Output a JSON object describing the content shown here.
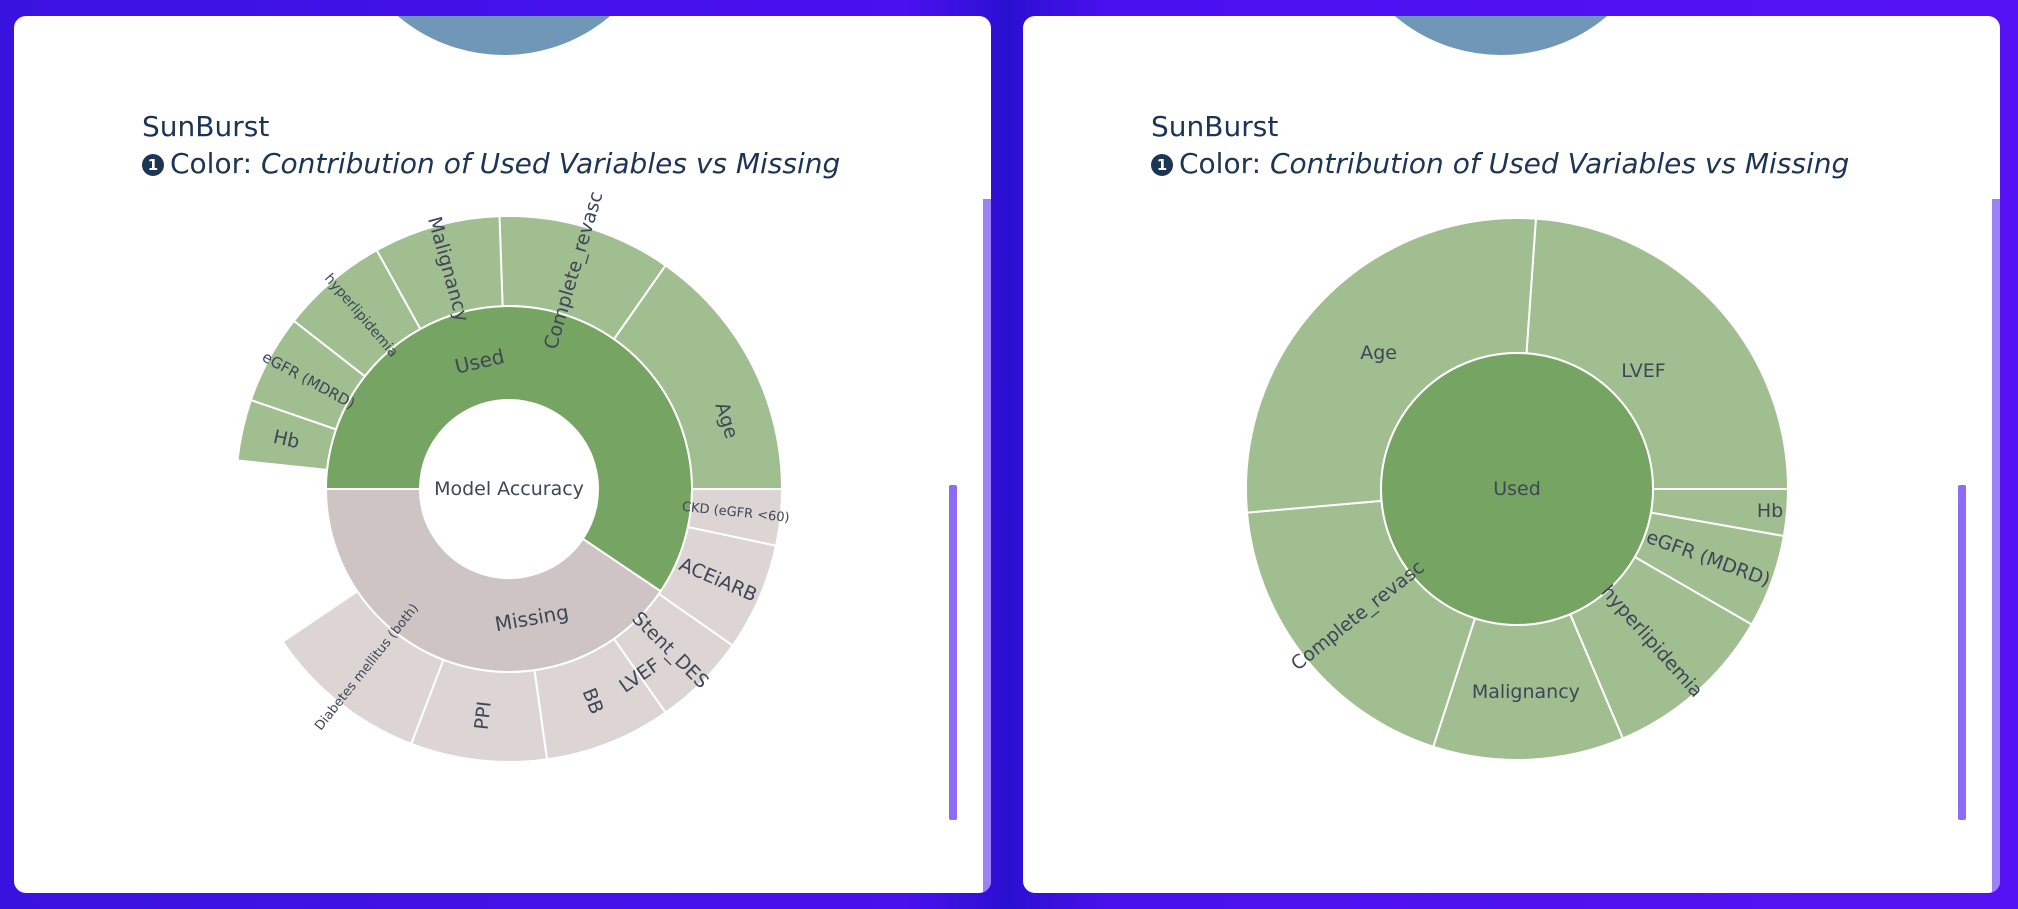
{
  "panels": [
    {
      "id": "left",
      "title": "SunBurst",
      "subtitle_number": "❶",
      "subtitle_prefix": "Color:",
      "subtitle_metric": "Contribution of Used Variables vs Missing",
      "center_label": "Model Accuracy"
    },
    {
      "id": "right",
      "title": "SunBurst",
      "subtitle_number": "❶",
      "subtitle_prefix": "Color:",
      "subtitle_metric": "Contribution of Used Variables vs Missing",
      "center_label": "Used"
    }
  ],
  "colors": {
    "used_inner": "#76a462",
    "used_outer": "#a0be90",
    "missing_inner": "#cfc4c4",
    "missing_outer": "#dcd5d4",
    "text": "#3f4656",
    "title": "#1d3554",
    "top_partial": "#7197b8"
  },
  "chart_data": [
    {
      "type": "sunburst",
      "root": "Model Accuracy",
      "inner": [
        {
          "label": "Used",
          "start_deg": -270,
          "end_deg": 34
        },
        {
          "label": "Missing",
          "start_deg": 34,
          "end_deg": 180
        }
      ],
      "outer": [
        {
          "label": "LVEF",
          "parent": "Used",
          "start_deg": -270,
          "end_deg": -340
        },
        {
          "label": "Age",
          "start_deg": -340,
          "end_deg": -415
        },
        {
          "label": "Complete_revasc",
          "start_deg": -415,
          "end_deg": -452
        },
        {
          "label": "Malignancy",
          "start_deg": -452,
          "end_deg": -479
        },
        {
          "label": "hyperlipidemia",
          "start_deg": -479,
          "end_deg": -502
        },
        {
          "label": "eGFR (MDRD)",
          "start_deg": -502,
          "end_deg": -521
        },
        {
          "label": "Hb",
          "start_deg": -521,
          "end_deg": -534
        },
        {
          "label": "CKD (eGFR <60)",
          "parent": "Missing",
          "start_deg": 0,
          "end_deg": 12
        },
        {
          "label": "ACEiARB",
          "start_deg": 12,
          "end_deg": 35
        },
        {
          "label": "Stent_DES",
          "start_deg": 35,
          "end_deg": 55
        },
        {
          "label": "BB",
          "start_deg": 55,
          "end_deg": 82
        },
        {
          "label": "PPI",
          "start_deg": 82,
          "end_deg": 111
        },
        {
          "label": "Diabetes mellitus (both)",
          "start_deg": 111,
          "end_deg": 146
        }
      ]
    },
    {
      "type": "sunburst",
      "root": "Used",
      "outer": [
        {
          "label": "LVEF",
          "start_deg": -86,
          "end_deg": 0
        },
        {
          "label": "Hb",
          "start_deg": 0,
          "end_deg": 10
        },
        {
          "label": "eGFR (MDRD)",
          "start_deg": 10,
          "end_deg": 30
        },
        {
          "label": "hyperlipidemia",
          "start_deg": 30,
          "end_deg": 67
        },
        {
          "label": "Malignancy",
          "start_deg": 67,
          "end_deg": 108
        },
        {
          "label": "Complete_revasc",
          "start_deg": 108,
          "end_deg": 175
        },
        {
          "label": "Age",
          "start_deg": 175,
          "end_deg": 274
        }
      ]
    }
  ]
}
